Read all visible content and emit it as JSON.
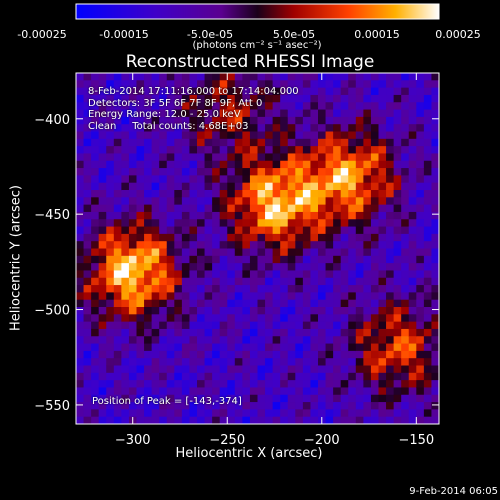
{
  "colorbar": {
    "ticks": [
      "-0.00025",
      "-0.00015",
      "-5.0e-05",
      "5.0e-05",
      "0.00015",
      "0.00025"
    ],
    "units": "(photons cm⁻² s⁻¹ asec⁻²)"
  },
  "chart_data": {
    "type": "heatmap",
    "title": "Reconstructed RHESSI Image",
    "xlabel": "Heliocentric X (arcsec)",
    "ylabel": "Heliocentric Y (arcsec)",
    "xlim": [
      -330,
      -138
    ],
    "ylim": [
      -560,
      -376
    ],
    "xticks": [
      -300,
      -250,
      -200,
      -150
    ],
    "yticks": [
      -550,
      -500,
      -450,
      -400
    ],
    "colorbar_range": [
      -0.00025,
      0.00025
    ],
    "colormap": "blue-purple-red-orange-yellow-white",
    "peak": {
      "x": -143,
      "y": -374
    },
    "bright_regions": [
      {
        "x": -225,
        "y": -445,
        "level": 0.00022
      },
      {
        "x": -185,
        "y": -430,
        "level": 0.0002
      },
      {
        "x": -300,
        "y": -480,
        "level": 0.00024
      },
      {
        "x": -160,
        "y": -520,
        "level": 0.00016
      },
      {
        "x": -250,
        "y": -395,
        "level": 0.00012
      }
    ],
    "annotations": {
      "time": "8-Feb-2014 17:11:16.000 to 17:14:04.000",
      "detectors": "Detectors: 3F 5F 6F 7F 8F 9F, Att 0",
      "energy": "Energy Range: 12.0 - 25.0 keV",
      "clean": "Clean     Total counts: 4.68E+03",
      "peak_text": "Position of Peak = [-143,-374]"
    }
  },
  "footer": {
    "timestamp": "9-Feb-2014 06:05"
  }
}
